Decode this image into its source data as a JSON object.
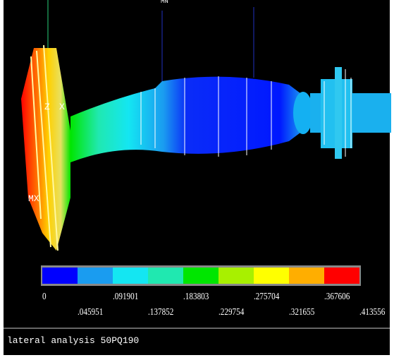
{
  "plot": {
    "node_labels": [
      "MX",
      "Z",
      "X",
      "MN"
    ]
  },
  "legend": {
    "colors": [
      "#0000ff",
      "#1a9cf0",
      "#14e6f2",
      "#20e8b0",
      "#00e600",
      "#a8f000",
      "#ffff00",
      "#ffae00",
      "#ff0000"
    ],
    "labels": [
      "0",
      ".045951",
      ".091901",
      ".137852",
      ".183803",
      ".229754",
      ".275704",
      ".321655",
      ".367606",
      ".413556"
    ]
  },
  "caption": "lateral analysis 50PQ190"
}
